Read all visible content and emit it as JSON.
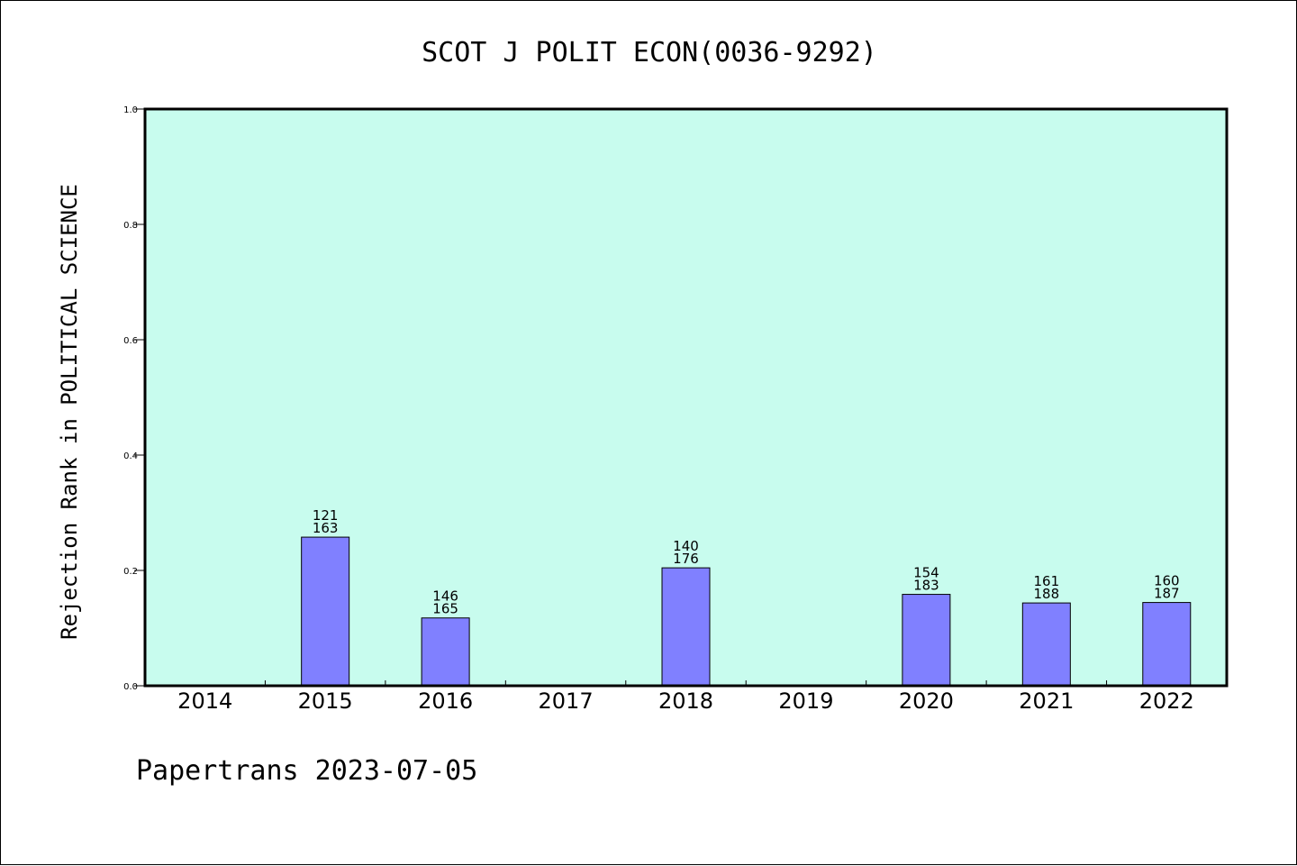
{
  "chart_data": {
    "type": "bar",
    "title": "SCOT J POLIT ECON(0036-9292)",
    "ylabel": "Rejection Rank in POLITICAL SCIENCE",
    "xlabel": "",
    "ylim": [
      0,
      1.0
    ],
    "yticks": [
      "0.0",
      "0.2",
      "0.4",
      "0.6",
      "0.8",
      "1.0"
    ],
    "ytick_values": [
      0.0,
      0.2,
      0.4,
      0.6,
      0.8,
      1.0
    ],
    "categories": [
      "2014",
      "2015",
      "2016",
      "2017",
      "2018",
      "2019",
      "2020",
      "2021",
      "2022"
    ],
    "values": [
      null,
      0.2577,
      0.1176,
      null,
      0.2045,
      null,
      0.1585,
      0.1436,
      0.1444
    ],
    "labels_top": [
      "",
      "121",
      "146",
      "",
      "140",
      "",
      "154",
      "161",
      "160"
    ],
    "labels_bottom": [
      "",
      "163",
      "165",
      "",
      "176",
      "",
      "183",
      "188",
      "187"
    ],
    "grid": false,
    "colors": {
      "plot_background": "#c8fcee",
      "bar_fill": "#8080ff",
      "bar_stroke": "#000000",
      "axis": "#000000"
    }
  },
  "footer": "Papertrans 2023-07-05"
}
